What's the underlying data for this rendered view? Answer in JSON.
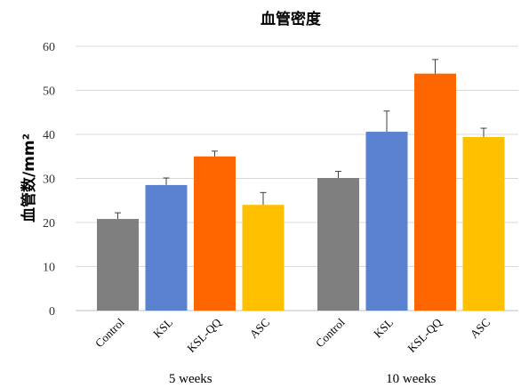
{
  "chart_data": {
    "type": "bar",
    "title": "血管密度",
    "ylabel": "血管数/mm²",
    "ylim": [
      0,
      60
    ],
    "yticks": [
      0,
      10,
      20,
      30,
      40,
      50,
      60
    ],
    "grid": true,
    "groups": [
      {
        "name": "5 weeks",
        "bars": [
          {
            "label": "Control",
            "value": 20.8,
            "error": 1.4,
            "color": "#7f7f7f"
          },
          {
            "label": "KSL",
            "value": 28.5,
            "error": 1.6,
            "color": "#5b82d1"
          },
          {
            "label": "KSL-QQ",
            "value": 35.0,
            "error": 1.2,
            "color": "#ff6600"
          },
          {
            "label": "ASC",
            "value": 24.0,
            "error": 2.8,
            "color": "#ffc000"
          }
        ]
      },
      {
        "name": "10 weeks",
        "bars": [
          {
            "label": "Control",
            "value": 30.1,
            "error": 1.5,
            "color": "#7f7f7f"
          },
          {
            "label": "KSL",
            "value": 40.6,
            "error": 4.7,
            "color": "#5b82d1"
          },
          {
            "label": "KSL-QQ",
            "value": 53.8,
            "error": 3.2,
            "color": "#ff6600"
          },
          {
            "label": "ASC",
            "value": 39.4,
            "error": 2.0,
            "color": "#ffc000"
          }
        ]
      }
    ]
  }
}
